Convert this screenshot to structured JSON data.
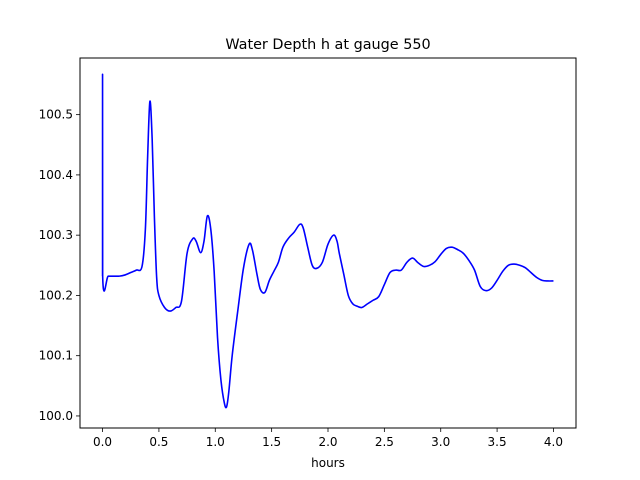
{
  "chart_data": {
    "type": "line",
    "title": "Water Depth h at gauge 550",
    "xlabel": "hours",
    "ylabel": "",
    "xlim": [
      -0.2,
      4.2
    ],
    "ylim": [
      99.98,
      100.594
    ],
    "xticks": [
      0.0,
      0.5,
      1.0,
      1.5,
      2.0,
      2.5,
      3.0,
      3.5,
      4.0
    ],
    "xtick_labels": [
      "0.0",
      "0.5",
      "1.0",
      "1.5",
      "2.0",
      "2.5",
      "3.0",
      "3.5",
      "4.0"
    ],
    "yticks": [
      100.0,
      100.1,
      100.2,
      100.3,
      100.4,
      100.5
    ],
    "ytick_labels": [
      "100.0",
      "100.1",
      "100.2",
      "100.3",
      "100.4",
      "100.5"
    ],
    "grid": false,
    "series": [
      {
        "color": "#0000ff",
        "x": [
          0.0,
          0.0,
          0.001,
          0.05,
          0.1,
          0.15,
          0.2,
          0.25,
          0.3,
          0.35,
          0.38,
          0.4,
          0.42,
          0.44,
          0.46,
          0.48,
          0.5,
          0.55,
          0.6,
          0.65,
          0.7,
          0.75,
          0.8,
          0.83,
          0.87,
          0.9,
          0.93,
          0.96,
          0.99,
          1.02,
          1.05,
          1.08,
          1.1,
          1.12,
          1.15,
          1.2,
          1.25,
          1.3,
          1.33,
          1.37,
          1.4,
          1.44,
          1.48,
          1.52,
          1.56,
          1.6,
          1.65,
          1.7,
          1.75,
          1.78,
          1.82,
          1.86,
          1.9,
          1.95,
          2.0,
          2.05,
          2.08,
          2.1,
          2.14,
          2.18,
          2.22,
          2.26,
          2.3,
          2.35,
          2.4,
          2.45,
          2.5,
          2.55,
          2.6,
          2.65,
          2.7,
          2.75,
          2.8,
          2.85,
          2.9,
          2.95,
          3.0,
          3.05,
          3.1,
          3.15,
          3.2,
          3.25,
          3.3,
          3.35,
          3.4,
          3.45,
          3.5,
          3.55,
          3.6,
          3.65,
          3.7,
          3.75,
          3.8,
          3.85,
          3.9,
          3.95,
          4.0
        ],
        "y": [
          100.232,
          100.567,
          100.232,
          100.232,
          100.232,
          100.232,
          100.234,
          100.238,
          100.242,
          100.248,
          100.31,
          100.43,
          100.522,
          100.46,
          100.33,
          100.23,
          100.2,
          100.18,
          100.174,
          100.18,
          100.19,
          100.27,
          100.294,
          100.29,
          100.271,
          100.29,
          100.332,
          100.31,
          100.24,
          100.13,
          100.06,
          100.022,
          100.015,
          100.04,
          100.1,
          100.175,
          100.245,
          100.285,
          100.275,
          100.235,
          100.21,
          100.205,
          100.225,
          100.24,
          100.255,
          100.28,
          100.295,
          100.305,
          100.318,
          100.312,
          100.28,
          100.25,
          100.245,
          100.255,
          100.285,
          100.3,
          100.29,
          100.27,
          100.235,
          100.2,
          100.186,
          100.182,
          100.18,
          100.186,
          100.192,
          100.198,
          100.218,
          100.238,
          100.242,
          100.242,
          100.255,
          100.262,
          100.254,
          100.248,
          100.25,
          100.256,
          100.268,
          100.278,
          100.28,
          100.276,
          100.27,
          100.258,
          100.242,
          100.215,
          100.208,
          100.212,
          100.225,
          100.24,
          100.25,
          100.252,
          100.25,
          100.246,
          100.238,
          100.23,
          100.225,
          100.224,
          100.224
        ]
      }
    ]
  }
}
